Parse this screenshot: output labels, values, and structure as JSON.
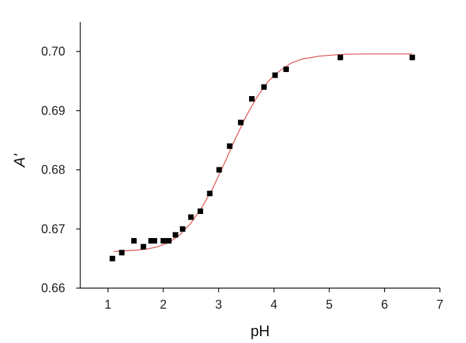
{
  "chart_data": {
    "type": "scatter",
    "title": "",
    "xlabel": "pH",
    "ylabel": "A'",
    "xlim": [
      0.5,
      7
    ],
    "ylim": [
      0.66,
      0.705
    ],
    "x_ticks": [
      1,
      2,
      3,
      4,
      5,
      6,
      7
    ],
    "x_tick_labels": [
      "1",
      "2",
      "3",
      "4",
      "5",
      "6",
      "7"
    ],
    "y_ticks": [
      0.66,
      0.67,
      0.68,
      0.69,
      0.7
    ],
    "y_tick_labels": [
      "0.66",
      "0.67",
      "0.68",
      "0.69",
      "0.70"
    ],
    "grid": false,
    "legend": "none",
    "series": [
      {
        "kind": "points",
        "marker": "square",
        "color": "#000000",
        "x": [
          1.08,
          1.25,
          1.47,
          1.64,
          1.78,
          1.84,
          2.0,
          2.1,
          2.22,
          2.35,
          2.5,
          2.67,
          2.84,
          3.01,
          3.2,
          3.4,
          3.6,
          3.82,
          4.02,
          4.22,
          5.2,
          6.5
        ],
        "y": [
          0.665,
          0.666,
          0.668,
          0.667,
          0.668,
          0.668,
          0.668,
          0.668,
          0.669,
          0.67,
          0.672,
          0.673,
          0.676,
          0.68,
          0.684,
          0.688,
          0.692,
          0.694,
          0.696,
          0.697,
          0.699,
          0.699
        ]
      },
      {
        "kind": "fit-curve",
        "color": "#d9534f",
        "x": [
          1.1,
          1.3,
          1.5,
          1.7,
          1.9,
          2.1,
          2.3,
          2.5,
          2.7,
          2.9,
          3.1,
          3.3,
          3.5,
          3.7,
          3.9,
          4.1,
          4.3,
          4.5,
          4.8,
          5.2,
          5.6,
          6.0,
          6.5
        ],
        "y": [
          0.6662,
          0.6663,
          0.6664,
          0.6666,
          0.667,
          0.6677,
          0.669,
          0.671,
          0.6737,
          0.677,
          0.681,
          0.6852,
          0.6891,
          0.6924,
          0.695,
          0.6967,
          0.698,
          0.6987,
          0.6992,
          0.6995,
          0.6996,
          0.6996,
          0.6996
        ]
      }
    ]
  }
}
